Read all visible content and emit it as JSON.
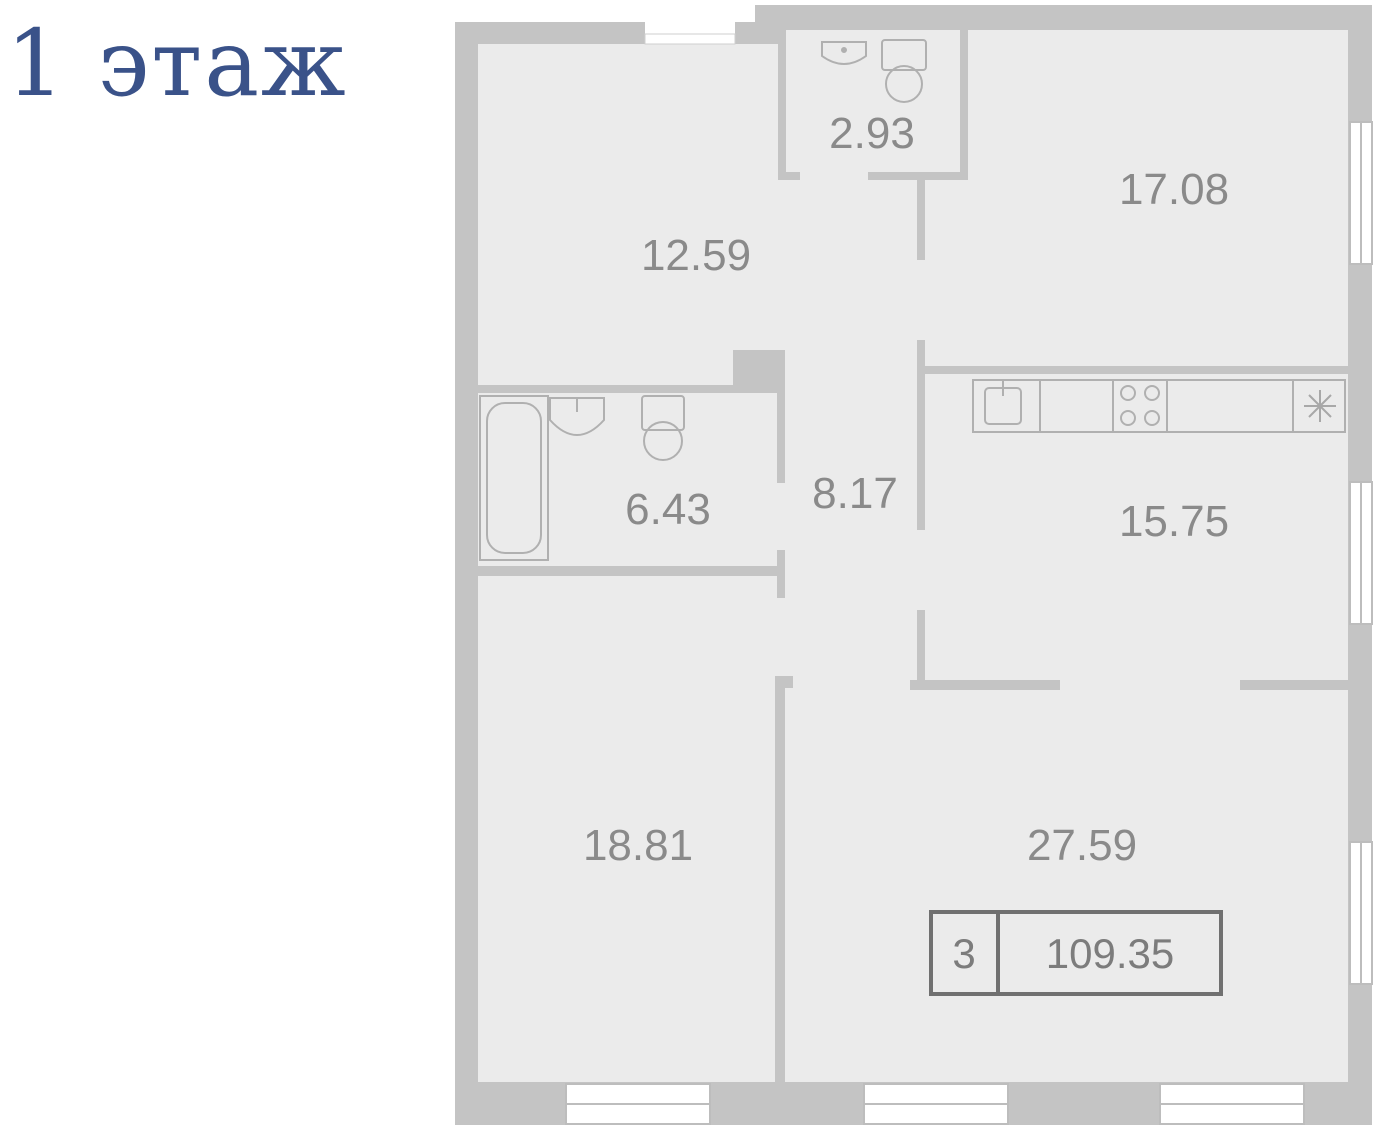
{
  "floor_label": "1 этаж",
  "rooms": [
    {
      "id": "wc",
      "area": "2.93"
    },
    {
      "id": "bedroom-top-right",
      "area": "17.08"
    },
    {
      "id": "bedroom-top-left",
      "area": "12.59"
    },
    {
      "id": "bathroom",
      "area": "6.43"
    },
    {
      "id": "hall",
      "area": "8.17"
    },
    {
      "id": "kitchen",
      "area": "15.75"
    },
    {
      "id": "bedroom-bottom-left",
      "area": "18.81"
    },
    {
      "id": "living-room",
      "area": "27.59"
    }
  ],
  "summary": {
    "room_count": "3",
    "total_area": "109.35"
  },
  "colors": {
    "wall": "#c4c4c4",
    "floor": "#ebebeb",
    "fixture_stroke": "#b0b0b0",
    "label": "#3a5289",
    "text": "#8a8a8a"
  }
}
